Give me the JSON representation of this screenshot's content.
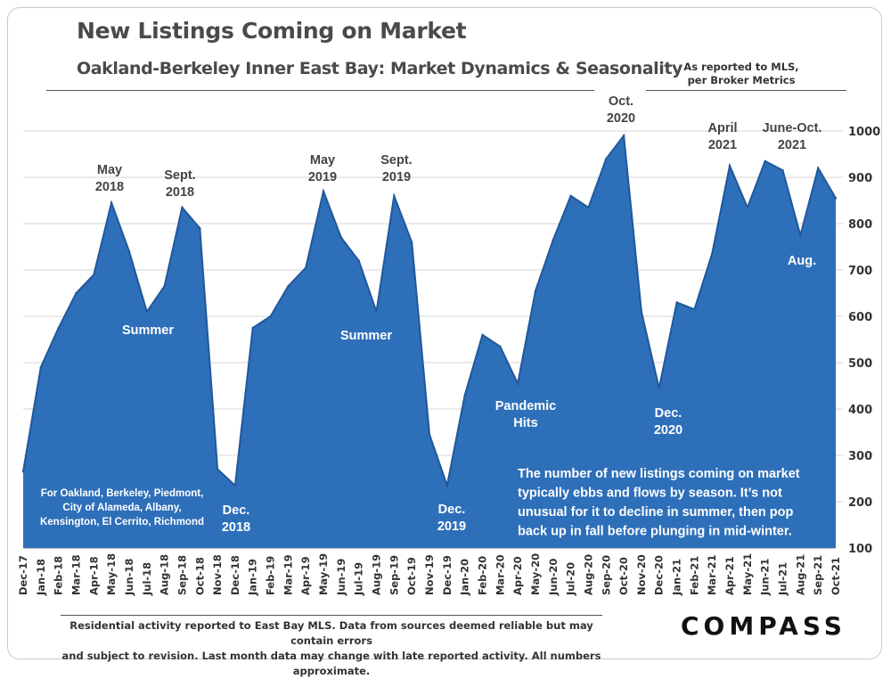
{
  "header": {
    "title": "New Listings Coming on Market",
    "subtitle": "Oakland-Berkeley Inner East Bay: Market Dynamics & Seasonality",
    "source_line1": "As reported to MLS,",
    "source_line2": "per Broker Metrics"
  },
  "footer": {
    "line1": "Residential activity reported to East Bay MLS. Data from sources deemed reliable but may contain errors",
    "line2": "and subject to revision. Last month data may change with late reported activity. All numbers approximate.",
    "logo": "COMPASS"
  },
  "colors": {
    "fill": "#2e6fb9",
    "line": "#20589a",
    "text": "#444444",
    "grid": "#d4d4d4"
  },
  "chart_data": {
    "type": "area",
    "title": "New Listings Coming on Market",
    "ylim": [
      100,
      1000
    ],
    "yticks": [
      100,
      200,
      300,
      400,
      500,
      600,
      700,
      800,
      900,
      1000
    ],
    "y_axis_side": "right",
    "grid": true,
    "categories": [
      "Dec-17",
      "Jan-18",
      "Feb-18",
      "Mar-18",
      "Apr-18",
      "May-18",
      "Jun-18",
      "Jul-18",
      "Aug-18",
      "Sep-18",
      "Oct-18",
      "Nov-18",
      "Dec-18",
      "Jan-19",
      "Feb-19",
      "Mar-19",
      "Apr-19",
      "May-19",
      "Jun-19",
      "Jul-19",
      "Aug-19",
      "Sep-19",
      "Oct-19",
      "Nov-19",
      "Dec-19",
      "Jan-20",
      "Feb-20",
      "Mar-20",
      "Apr-20",
      "May-20",
      "Jun-20",
      "Jul-20",
      "Aug-20",
      "Sep-20",
      "Oct-20",
      "Nov-20",
      "Dec-20",
      "Jan-21",
      "Feb-21",
      "Mar-21",
      "Apr-21",
      "May-21",
      "Jun-21",
      "Jul-21",
      "Aug-21",
      "Sep-21",
      "Oct-21"
    ],
    "values": [
      265,
      490,
      575,
      650,
      690,
      845,
      740,
      610,
      665,
      835,
      790,
      270,
      235,
      575,
      600,
      665,
      705,
      870,
      770,
      720,
      610,
      860,
      760,
      345,
      235,
      430,
      560,
      535,
      455,
      655,
      765,
      860,
      835,
      940,
      990,
      610,
      445,
      630,
      615,
      735,
      925,
      835,
      935,
      915,
      775,
      920,
      855
    ],
    "annotations": [
      {
        "text": [
          "May",
          "2018"
        ]
      },
      {
        "text": [
          "Sept.",
          "2018"
        ]
      },
      {
        "text": [
          "Summer"
        ]
      },
      {
        "text": [
          "Dec.",
          "2018"
        ]
      },
      {
        "text": [
          "May",
          "2019"
        ]
      },
      {
        "text": [
          "Sept.",
          "2019"
        ]
      },
      {
        "text": [
          "Summer"
        ]
      },
      {
        "text": [
          "Dec.",
          "2019"
        ]
      },
      {
        "text": [
          "Pandemic",
          "Hits"
        ]
      },
      {
        "text": [
          "Oct.",
          "2020"
        ]
      },
      {
        "text": [
          "Dec.",
          "2020"
        ]
      },
      {
        "text": [
          "April",
          "2021"
        ]
      },
      {
        "text": [
          "June-Oct.",
          "2021"
        ]
      },
      {
        "text": [
          "Aug."
        ]
      },
      {
        "text": [
          "For Oakland, Berkeley, Piedmont,",
          "City of Alameda, Albany,",
          "Kensington, El Cerrito, Richmond"
        ]
      },
      {
        "text": [
          "The number of new listings coming on market",
          "typically ebbs and flows by season. It’s not",
          "unusual for it to decline in summer, then pop",
          "back up in fall before plunging in mid-winter."
        ]
      }
    ]
  }
}
